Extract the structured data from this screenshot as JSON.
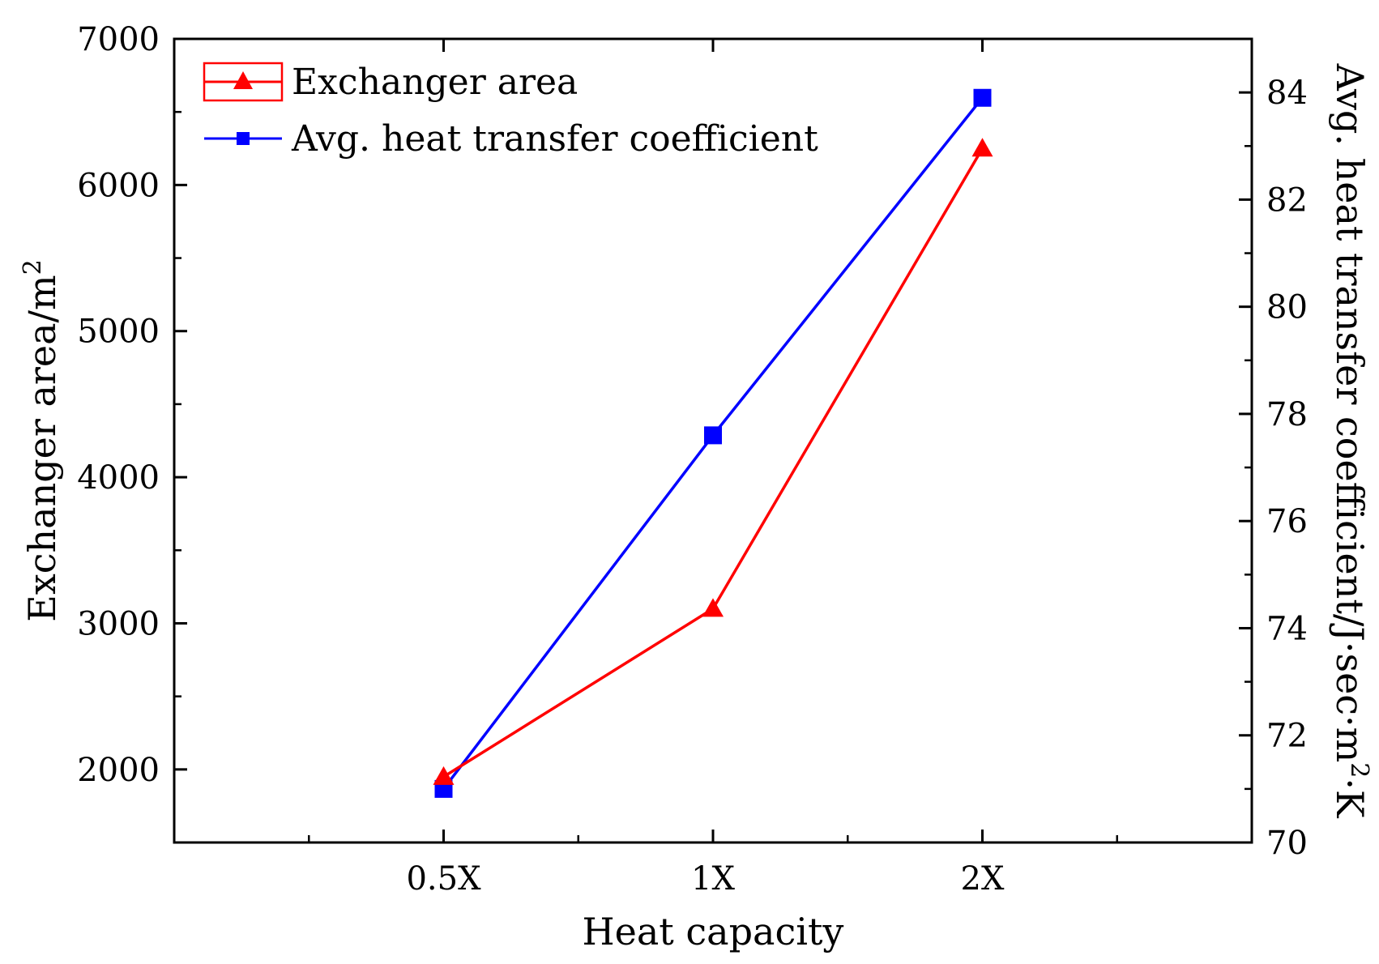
{
  "chart_data": {
    "type": "line",
    "title": "",
    "xlabel": "Heat capacity",
    "categories": [
      "0.5X",
      "1X",
      "2X"
    ],
    "y_left": {
      "label_main": "Exchanger area/m",
      "label_sup": "2",
      "lim": [
        1500,
        7000
      ],
      "ticks": [
        2000,
        3000,
        4000,
        5000,
        6000,
        7000
      ],
      "tick_labels": [
        "2000",
        "3000",
        "4000",
        "5000",
        "6000",
        "7000"
      ],
      "minor_step": 500
    },
    "y_right": {
      "label_main": "Avg. heat transfer coefficient/J·sec·m",
      "label_sup": "2",
      "label_end": "·K",
      "lim": [
        70,
        85
      ],
      "ticks": [
        70,
        72,
        74,
        76,
        78,
        80,
        82,
        84
      ],
      "tick_labels": [
        "70",
        "72",
        "74",
        "76",
        "78",
        "80",
        "82",
        "84"
      ],
      "minor_step": 1
    },
    "series": [
      {
        "name": "Exchanger area",
        "axis": "left",
        "marker": "triangle",
        "color": "#ff0000",
        "values": [
          1950,
          3100,
          6250
        ]
      },
      {
        "name": "Avg. heat transfer coefficient",
        "axis": "right",
        "marker": "square",
        "color": "#0000ff",
        "values": [
          71.0,
          77.6,
          83.9
        ]
      }
    ],
    "legend_position": "top-left",
    "grid": false
  }
}
